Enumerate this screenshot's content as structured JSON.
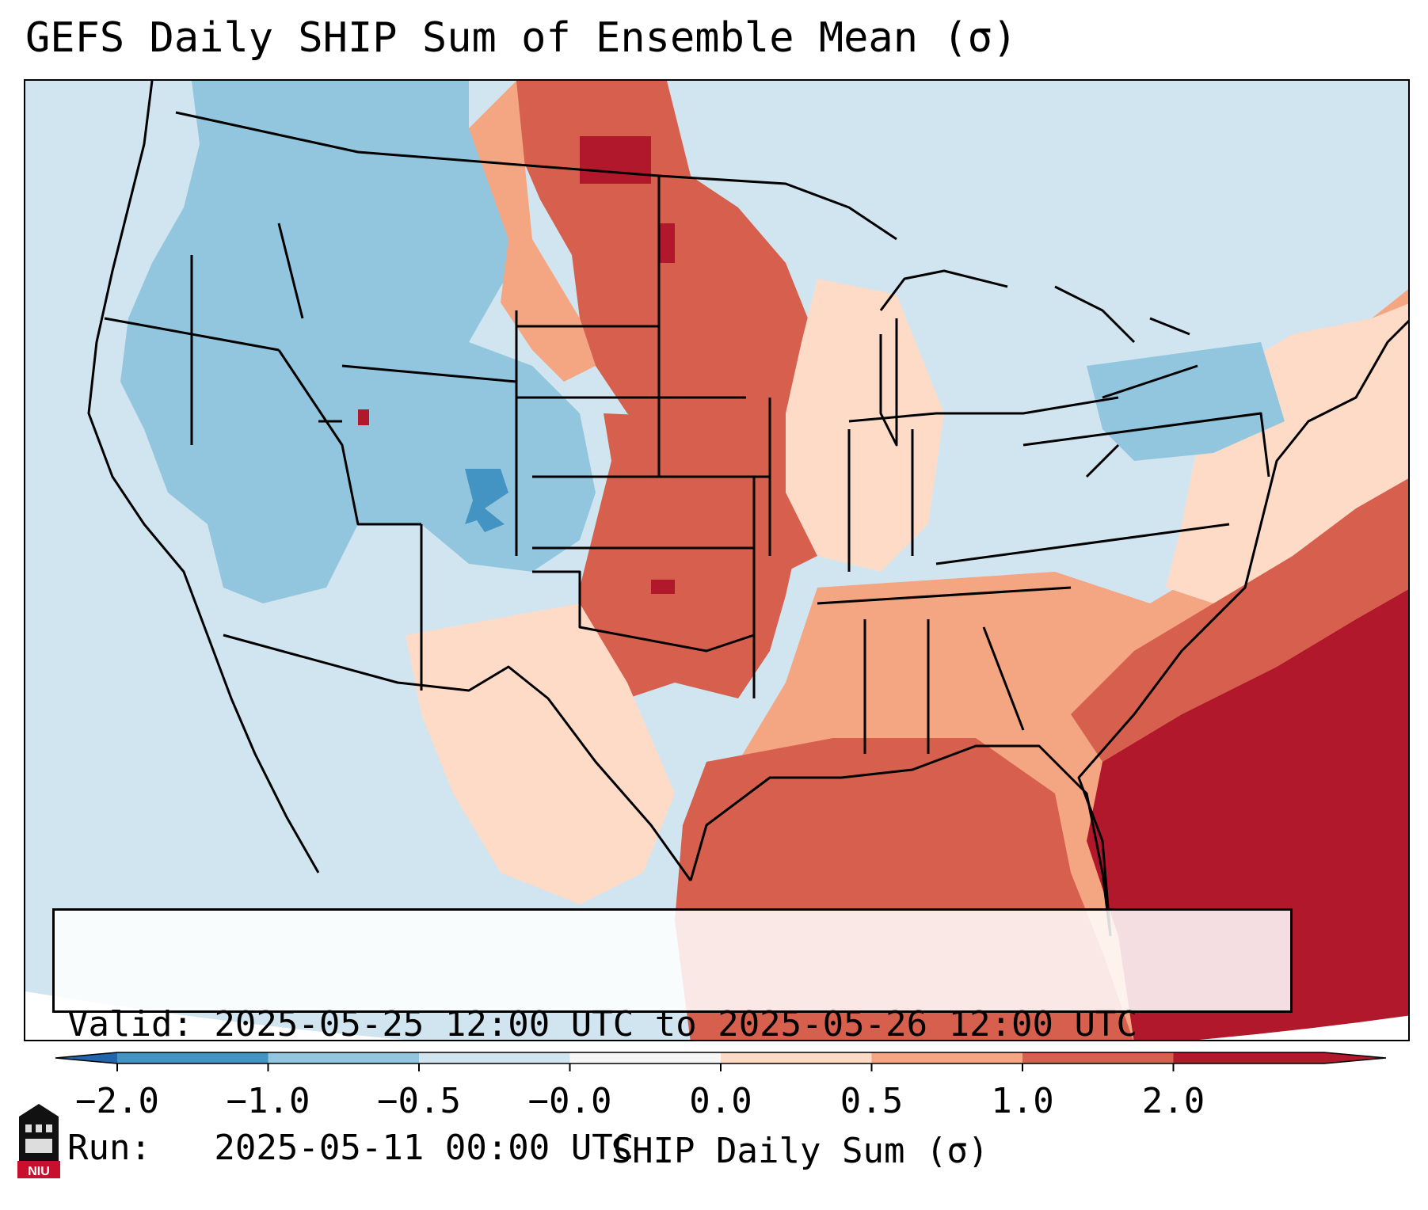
{
  "title": "GEFS Daily SHIP Sum of Ensemble Mean (σ)",
  "info": {
    "valid_line": "Valid: 2025-05-25 12:00 UTC to 2025-05-26 12:00 UTC",
    "run_line": "Run:   2025-05-11 00:00 UTC"
  },
  "colorbar": {
    "label": "SHIP Daily Sum (σ)",
    "ticks": [
      "−2.0",
      "−1.0",
      "−0.5",
      "−0.0",
      "0.0",
      "0.5",
      "1.0",
      "2.0"
    ],
    "colors": [
      "#4393c3",
      "#92c5de",
      "#d1e5f0",
      "#f7f7f7",
      "#fddbc7",
      "#f4a582",
      "#d6604d",
      "#b2182b"
    ],
    "extend": "both"
  },
  "logo": {
    "text": "NIU"
  },
  "map": {
    "region": "CONUS",
    "background_color": "#d1e5f0",
    "fields": [
      {
        "area": "Northern Plains",
        "level": "1.0 to 2.0",
        "color": "#d6604d"
      },
      {
        "area": "Central and Southern Plains",
        "level": "1.0 to 2.0",
        "color": "#d6604d"
      },
      {
        "area": "Western Atlantic",
        "level": "above 2.0",
        "color": "#b2182b"
      },
      {
        "area": "Gulf of Mexico",
        "level": "1.0 to 2.0",
        "color": "#d6604d"
      },
      {
        "area": "Great Basin and Rockies",
        "level": "-1.0 to -0.5",
        "color": "#92c5de"
      },
      {
        "area": "Southwest",
        "level": "-0.5 to 0.0",
        "color": "#d1e5f0"
      },
      {
        "area": "Southeast",
        "level": "0.5 to 1.0",
        "color": "#f4a582"
      },
      {
        "area": "Great Lakes and Northeast",
        "level": "-0.5 to 0.0",
        "color": "#d1e5f0"
      }
    ]
  }
}
